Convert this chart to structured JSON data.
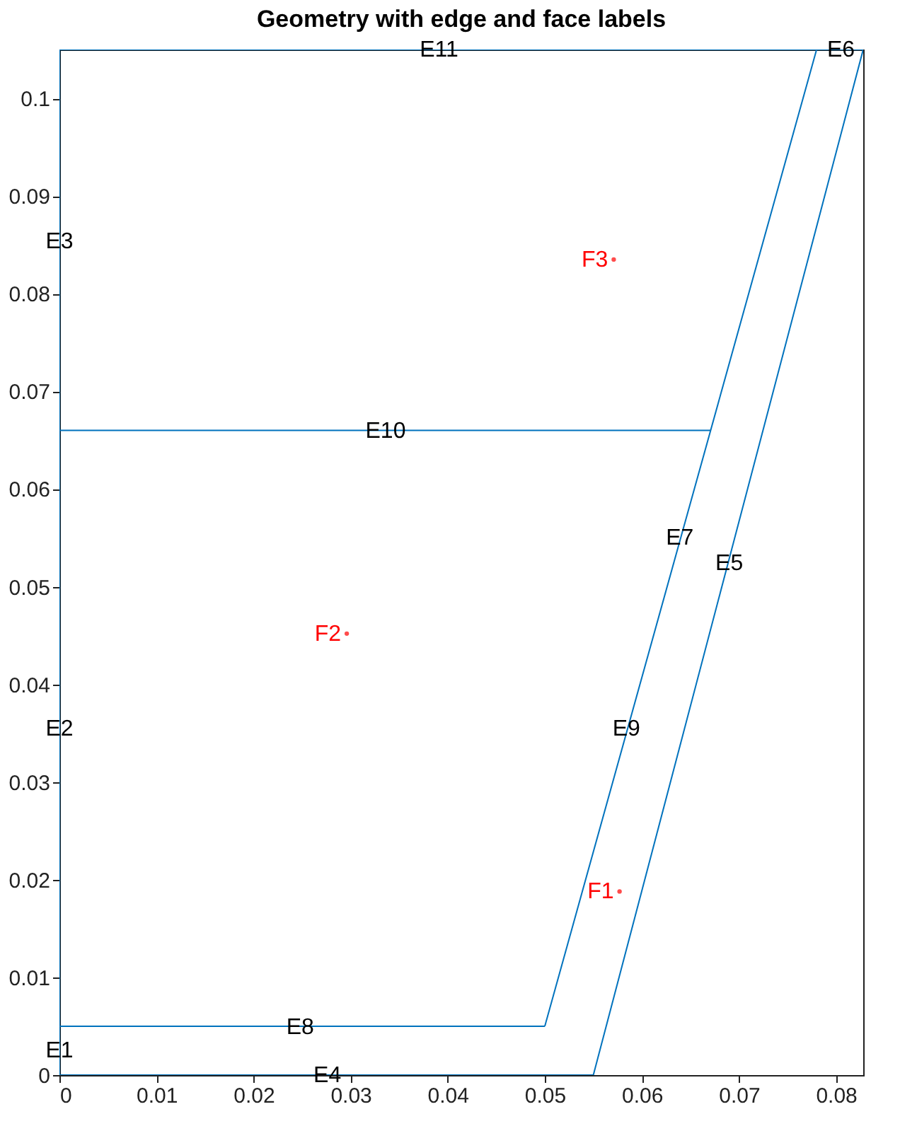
{
  "chart_data": {
    "type": "line",
    "title": "Geometry with edge and face labels",
    "xlim": [
      0,
      0.0828
    ],
    "xticks": [
      0,
      0.01,
      0.02,
      0.03,
      0.04,
      0.05,
      0.06,
      0.07,
      0.08
    ],
    "ylim": [
      0,
      0.105
    ],
    "yticks": [
      0,
      0.01,
      0.02,
      0.03,
      0.04,
      0.05,
      0.06,
      0.07,
      0.08,
      0.09,
      0.1
    ],
    "grid": false,
    "marker": "none",
    "line_style": "solid",
    "series": [
      {
        "color": "#0072bd",
        "x": [
          0,
          0.055
        ],
        "values": [
          0,
          0
        ]
      },
      {
        "color": "#0072bd",
        "x": [
          0.055,
          0.0828
        ],
        "values": [
          0,
          0.105
        ]
      },
      {
        "color": "#0072bd",
        "x": [
          0,
          0.0828
        ],
        "values": [
          0.105,
          0.105
        ]
      },
      {
        "color": "#0072bd",
        "x": [
          0,
          0
        ],
        "values": [
          0,
          0.105
        ]
      },
      {
        "color": "#0072bd",
        "x": [
          0,
          0.05
        ],
        "values": [
          0.005,
          0.005
        ]
      },
      {
        "color": "#0072bd",
        "x": [
          0.05,
          0.078
        ],
        "values": [
          0.005,
          0.105
        ]
      },
      {
        "color": "#0072bd",
        "x": [
          0,
          0.0671
        ],
        "values": [
          0.066,
          0.066
        ]
      },
      {
        "type": "scatter",
        "marker": "circle",
        "color": "#ff0000",
        "x": [
          0.0571,
          0.0296,
          0.0577
        ],
        "values": [
          0.0835,
          0.0452,
          0.0188
        ],
        "value_labels": [
          "F3",
          "F2",
          "F1"
        ]
      }
    ],
    "annotations": [
      {
        "text": "E11",
        "x": 0.0391,
        "y": 0.105
      },
      {
        "text": "E6",
        "x": 0.0805,
        "y": 0.105
      },
      {
        "text": "E3",
        "x": 0,
        "y": 0.0854
      },
      {
        "text": "E10",
        "x": 0.0336,
        "y": 0.066
      },
      {
        "text": "E7",
        "x": 0.0639,
        "y": 0.055
      },
      {
        "text": "E5",
        "x": 0.069,
        "y": 0.0524
      },
      {
        "text": "E2",
        "x": 0,
        "y": 0.0355
      },
      {
        "text": "E9",
        "x": 0.0584,
        "y": 0.0355
      },
      {
        "text": "E8",
        "x": 0.0248,
        "y": 0.0049
      },
      {
        "text": "E1",
        "x": 0,
        "y": 0.0025
      },
      {
        "text": "E4",
        "x": 0.0276,
        "y": 0
      }
    ]
  }
}
